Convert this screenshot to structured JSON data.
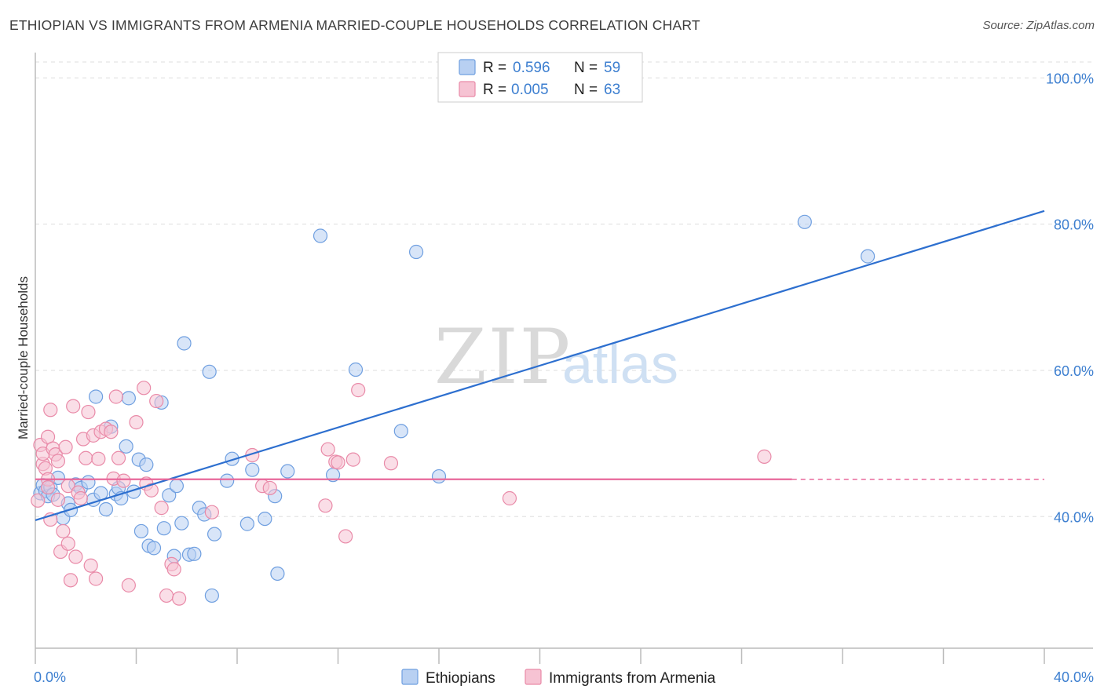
{
  "header": {
    "title": "ETHIOPIAN VS IMMIGRANTS FROM ARMENIA MARRIED-COUPLE HOUSEHOLDS CORRELATION CHART",
    "source": "Source: ZipAtlas.com"
  },
  "watermark": {
    "zip": "ZIP",
    "atlas": "atlas"
  },
  "colors": {
    "blue_fill": "#b8d0f2",
    "blue_stroke": "#6f9fe0",
    "blue_line": "#2d6fcf",
    "pink_fill": "#f6c3d3",
    "pink_stroke": "#e98aa8",
    "pink_line": "#e8679a",
    "tick_label": "#3d7fd0",
    "grid": "#dddddd"
  },
  "legend": {
    "items": [
      {
        "r_label": "R = ",
        "r_value": "0.596",
        "n_label": "N = ",
        "n_value": "59"
      },
      {
        "r_label": "R = ",
        "r_value": "0.005",
        "n_label": "N = ",
        "n_value": "63"
      }
    ]
  },
  "chart_data": {
    "type": "scatter",
    "title": "ETHIOPIAN VS IMMIGRANTS FROM ARMENIA MARRIED-COUPLE HOUSEHOLDS CORRELATION CHART",
    "xlabel": "",
    "ylabel": "Married-couple Households",
    "xlim": [
      0,
      40
    ],
    "ylim": [
      22,
      104
    ],
    "x_tick_labels": [
      "0.0%",
      "40.0%"
    ],
    "y_ticks": [
      40,
      60,
      80,
      100
    ],
    "y_tick_labels": [
      "40.0%",
      "60.0%",
      "80.0%",
      "100.0%"
    ],
    "grid": "horizontal dashed",
    "legend_position": "top-center",
    "bottom_legend": [
      "Ethiopians",
      "Immigrants from Armenia"
    ],
    "series": [
      {
        "name": "Ethiopians",
        "color": "#6f9fe0",
        "trend": {
          "x": [
            0,
            40
          ],
          "y": [
            39.5,
            81.8
          ]
        },
        "points": [
          [
            0.2,
            43.2
          ],
          [
            0.3,
            44.3
          ],
          [
            0.4,
            43.5
          ],
          [
            0.5,
            42.8
          ],
          [
            0.6,
            44.0
          ],
          [
            0.7,
            43.0
          ],
          [
            0.9,
            45.3
          ],
          [
            1.1,
            39.8
          ],
          [
            1.3,
            41.8
          ],
          [
            1.4,
            40.9
          ],
          [
            1.6,
            44.4
          ],
          [
            1.8,
            43.9
          ],
          [
            2.1,
            44.7
          ],
          [
            2.3,
            42.3
          ],
          [
            2.4,
            56.4
          ],
          [
            2.6,
            43.2
          ],
          [
            2.8,
            41.0
          ],
          [
            3.0,
            52.3
          ],
          [
            3.2,
            43.1
          ],
          [
            3.3,
            43.9
          ],
          [
            3.4,
            42.5
          ],
          [
            3.6,
            49.6
          ],
          [
            3.7,
            56.2
          ],
          [
            3.9,
            43.4
          ],
          [
            4.1,
            47.8
          ],
          [
            4.2,
            38.0
          ],
          [
            4.4,
            47.1
          ],
          [
            4.5,
            36.0
          ],
          [
            4.7,
            35.7
          ],
          [
            5.0,
            55.6
          ],
          [
            5.1,
            38.4
          ],
          [
            5.3,
            42.9
          ],
          [
            5.5,
            34.6
          ],
          [
            5.6,
            44.2
          ],
          [
            5.8,
            39.1
          ],
          [
            5.9,
            63.7
          ],
          [
            6.1,
            34.8
          ],
          [
            6.3,
            34.9
          ],
          [
            6.5,
            41.2
          ],
          [
            6.7,
            40.3
          ],
          [
            6.9,
            59.8
          ],
          [
            7.0,
            29.2
          ],
          [
            7.1,
            37.6
          ],
          [
            7.6,
            44.9
          ],
          [
            7.8,
            47.9
          ],
          [
            8.4,
            39.0
          ],
          [
            8.6,
            46.4
          ],
          [
            9.1,
            39.7
          ],
          [
            9.5,
            42.8
          ],
          [
            9.6,
            32.2
          ],
          [
            10.0,
            46.2
          ],
          [
            11.3,
            78.4
          ],
          [
            11.8,
            45.7
          ],
          [
            12.7,
            60.1
          ],
          [
            14.5,
            51.7
          ],
          [
            15.1,
            76.2
          ],
          [
            16.0,
            45.5
          ],
          [
            30.5,
            80.3
          ],
          [
            33.0,
            75.6
          ]
        ]
      },
      {
        "name": "Immigrants from Armenia",
        "color": "#e98aa8",
        "trend": {
          "x": [
            0,
            30
          ],
          "y": [
            45.1,
            45.1
          ],
          "dashed_extension_to_x": 40
        },
        "points": [
          [
            0.1,
            42.2
          ],
          [
            0.2,
            49.8
          ],
          [
            0.3,
            47.2
          ],
          [
            0.3,
            48.6
          ],
          [
            0.4,
            46.6
          ],
          [
            0.5,
            45.1
          ],
          [
            0.5,
            50.9
          ],
          [
            0.5,
            44.0
          ],
          [
            0.6,
            54.6
          ],
          [
            0.6,
            39.6
          ],
          [
            0.7,
            49.3
          ],
          [
            0.8,
            48.5
          ],
          [
            0.9,
            47.6
          ],
          [
            0.9,
            42.3
          ],
          [
            1.0,
            35.2
          ],
          [
            1.1,
            38.0
          ],
          [
            1.2,
            49.5
          ],
          [
            1.3,
            36.3
          ],
          [
            1.3,
            44.2
          ],
          [
            1.4,
            31.3
          ],
          [
            1.5,
            55.1
          ],
          [
            1.6,
            34.5
          ],
          [
            1.7,
            43.3
          ],
          [
            1.8,
            42.5
          ],
          [
            1.9,
            50.6
          ],
          [
            2.0,
            48.0
          ],
          [
            2.1,
            54.3
          ],
          [
            2.2,
            33.3
          ],
          [
            2.3,
            51.1
          ],
          [
            2.4,
            31.5
          ],
          [
            2.5,
            47.9
          ],
          [
            2.6,
            51.6
          ],
          [
            2.8,
            52.0
          ],
          [
            3.0,
            51.6
          ],
          [
            3.1,
            45.2
          ],
          [
            3.2,
            56.4
          ],
          [
            3.3,
            48.0
          ],
          [
            3.5,
            44.9
          ],
          [
            3.7,
            30.6
          ],
          [
            4.0,
            52.9
          ],
          [
            4.3,
            57.6
          ],
          [
            4.4,
            44.5
          ],
          [
            4.6,
            43.6
          ],
          [
            4.8,
            55.8
          ],
          [
            5.0,
            41.2
          ],
          [
            5.2,
            29.2
          ],
          [
            5.4,
            33.5
          ],
          [
            5.5,
            32.8
          ],
          [
            5.7,
            28.8
          ],
          [
            7.0,
            40.6
          ],
          [
            8.6,
            48.4
          ],
          [
            9.0,
            44.2
          ],
          [
            9.3,
            43.9
          ],
          [
            11.5,
            41.5
          ],
          [
            11.6,
            49.2
          ],
          [
            11.9,
            47.5
          ],
          [
            12.0,
            47.4
          ],
          [
            12.3,
            37.3
          ],
          [
            12.6,
            47.8
          ],
          [
            12.8,
            57.3
          ],
          [
            14.1,
            47.3
          ],
          [
            18.8,
            42.5
          ],
          [
            28.9,
            48.2
          ]
        ]
      }
    ]
  }
}
